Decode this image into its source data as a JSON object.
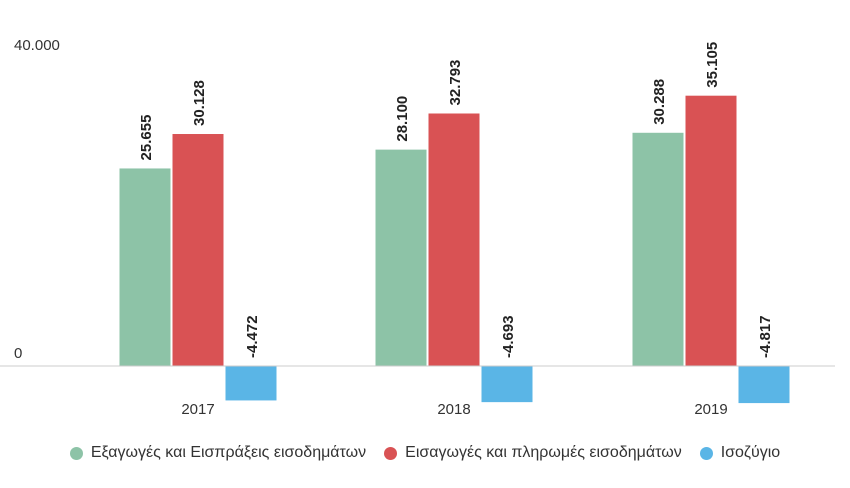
{
  "chart_data": {
    "type": "bar",
    "categories": [
      "2017",
      "2018",
      "2019"
    ],
    "series": [
      {
        "name": "Εξαγωγές και Εισπράξεις εισοδημάτων",
        "values": [
          25655,
          28100,
          30288
        ],
        "labels": [
          "25.655",
          "28.100",
          "30.288"
        ],
        "color": "#8dc3a7"
      },
      {
        "name": "Εισαγωγές και πληρωμές εισοδημάτων",
        "values": [
          30128,
          32793,
          35105
        ],
        "labels": [
          "30.128",
          "32.793",
          "35.105"
        ],
        "color": "#d95254"
      },
      {
        "name": "Ισοζύγιο",
        "values": [
          -4472,
          -4693,
          -4817
        ],
        "labels": [
          "-4.472",
          "-4.693",
          "-4.817"
        ],
        "color": "#5ab5e6"
      }
    ],
    "ylim": [
      0,
      40000
    ],
    "yticks": [
      {
        "value": 0,
        "label": "0"
      },
      {
        "value": 40000,
        "label": "40.000"
      }
    ],
    "grid": false,
    "legend_position": "bottom"
  }
}
